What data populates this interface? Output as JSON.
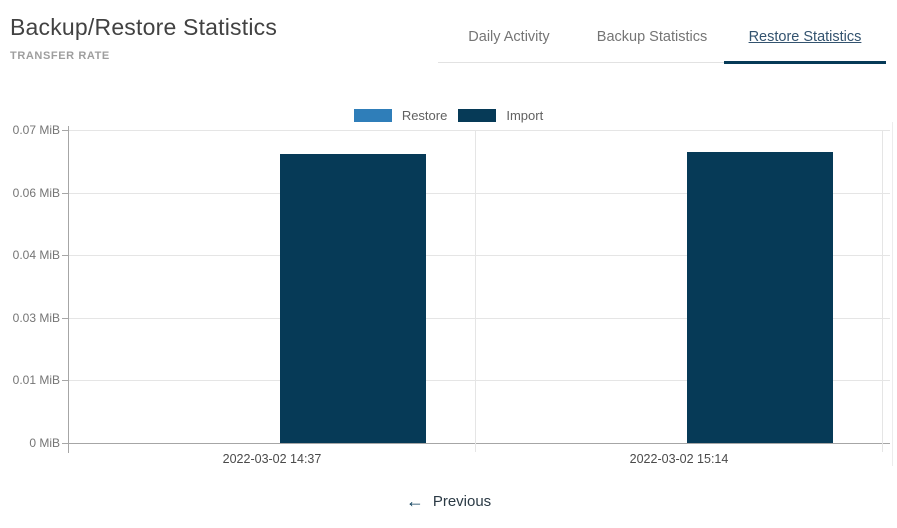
{
  "header": {
    "title": "Backup/Restore Statistics",
    "subtitle": "TRANSFER RATE"
  },
  "tabs": [
    {
      "label": "Daily Activity",
      "active": false
    },
    {
      "label": "Backup Statistics",
      "active": false
    },
    {
      "label": "Restore Statistics",
      "active": true
    }
  ],
  "pagination": {
    "previous_label": "Previous",
    "previous_icon": "left-arrow"
  },
  "colors": {
    "restore_series": "#2f7eb9",
    "import_series": "#063a57",
    "active_tab_underline": "#063a57",
    "inactive_tab_text": "#757575",
    "gridline": "#e5e5e5",
    "axis": "#a6a6a6"
  },
  "chart_data": {
    "type": "bar",
    "title": "TRANSFER RATE",
    "unit": "MiB",
    "categories": [
      "2022-03-02 14:37",
      "2022-03-02 15:14"
    ],
    "series": [
      {
        "name": "Restore",
        "color": "#2f7eb9",
        "values": [
          0,
          0
        ]
      },
      {
        "name": "Import",
        "color": "#063a57",
        "values": [
          0.0646,
          0.0651
        ]
      }
    ],
    "ylim": [
      0,
      0.07
    ],
    "y_ticks": [
      {
        "value": 0,
        "label": "0 MiB"
      },
      {
        "value": 0.014,
        "label": "0.01 MiB"
      },
      {
        "value": 0.028,
        "label": "0.03 MiB"
      },
      {
        "value": 0.042,
        "label": "0.04 MiB"
      },
      {
        "value": 0.056,
        "label": "0.06 MiB"
      },
      {
        "value": 0.07,
        "label": "0.07 MiB"
      }
    ],
    "grid": true,
    "legend_position": "top"
  }
}
